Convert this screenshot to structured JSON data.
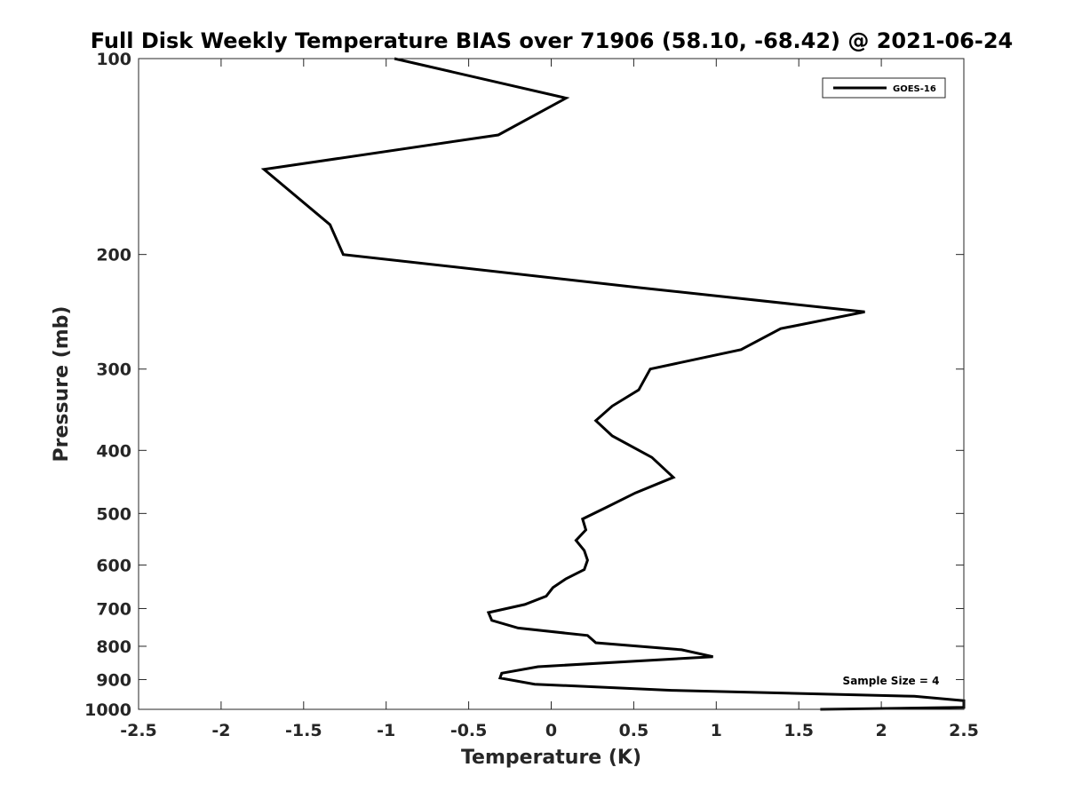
{
  "chart_data": {
    "type": "line",
    "title": "Full Disk Weekly Temperature BIAS over 71906 (58.10, -68.42) @ 2021-06-24",
    "xlabel": "Temperature (K)",
    "ylabel": "Pressure (mb)",
    "xlim": [
      -2.5,
      2.5
    ],
    "ylim": [
      100,
      1000
    ],
    "y_scale": "log",
    "y_reversed": true,
    "grid": false,
    "x_ticks": [
      -2.5,
      -2,
      -1.5,
      -1,
      -0.5,
      0,
      0.5,
      1,
      1.5,
      2,
      2.5
    ],
    "x_tick_labels": [
      "-2.5",
      "-2",
      "-1.5",
      "-1",
      "-0.5",
      "0",
      "0.5",
      "1",
      "1.5",
      "2",
      "2.5"
    ],
    "y_ticks": [
      100,
      200,
      300,
      400,
      500,
      600,
      700,
      800,
      900,
      1000
    ],
    "y_tick_labels": [
      "100",
      "200",
      "300",
      "400",
      "500",
      "600",
      "700",
      "800",
      "900",
      "1000"
    ],
    "legend_position": "top-right",
    "series": [
      {
        "name": "GOES-16",
        "color": "#000000",
        "x": [
          -0.95,
          0.09,
          -0.32,
          -1.74,
          -1.34,
          -1.26,
          0.54,
          1.9,
          1.39,
          1.15,
          0.6,
          0.53,
          0.37,
          0.27,
          0.37,
          0.61,
          0.74,
          0.51,
          0.33,
          0.19,
          0.21,
          0.15,
          0.2,
          0.22,
          0.2,
          0.09,
          0.01,
          -0.03,
          -0.16,
          -0.38,
          -0.36,
          -0.2,
          0.22,
          0.27,
          0.79,
          0.98,
          -0.08,
          -0.3,
          -0.31,
          -0.1,
          0.73,
          2.2,
          2.5,
          2.5,
          1.63
        ],
        "y": [
          100,
          115,
          131,
          148,
          180,
          200,
          225,
          245,
          260,
          280,
          300,
          323,
          342,
          360,
          380,
          410,
          440,
          465,
          490,
          510,
          530,
          550,
          570,
          590,
          610,
          630,
          650,
          670,
          690,
          710,
          730,
          750,
          770,
          790,
          810,
          830,
          860,
          880,
          895,
          915,
          935,
          955,
          970,
          993,
          1000
        ]
      }
    ],
    "annotations": [
      {
        "text": "Sample Size = 4",
        "x": 2.2,
        "y": 900
      }
    ]
  }
}
